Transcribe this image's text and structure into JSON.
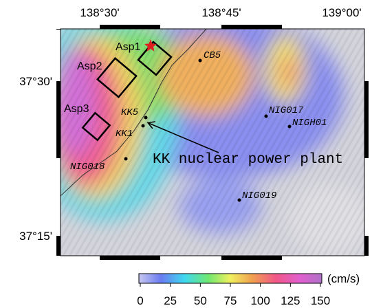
{
  "map": {
    "lon_labels": [
      "138°30'",
      "138°45'",
      "139°00'"
    ],
    "lat_labels": [
      "37°30'",
      "37°15'"
    ],
    "sources": [
      "Asp1",
      "Asp2",
      "Asp3"
    ],
    "stations": [
      "CB5",
      "NIG017",
      "NIGH01",
      "KK5",
      "KK1",
      "NIG018",
      "NIG019"
    ],
    "annotation": "KK nuclear power plant",
    "colorbar": {
      "unit": "(cm/s)",
      "range": [
        0,
        150
      ],
      "ticks": [
        0,
        25,
        50,
        75,
        100,
        125,
        150
      ]
    }
  }
}
